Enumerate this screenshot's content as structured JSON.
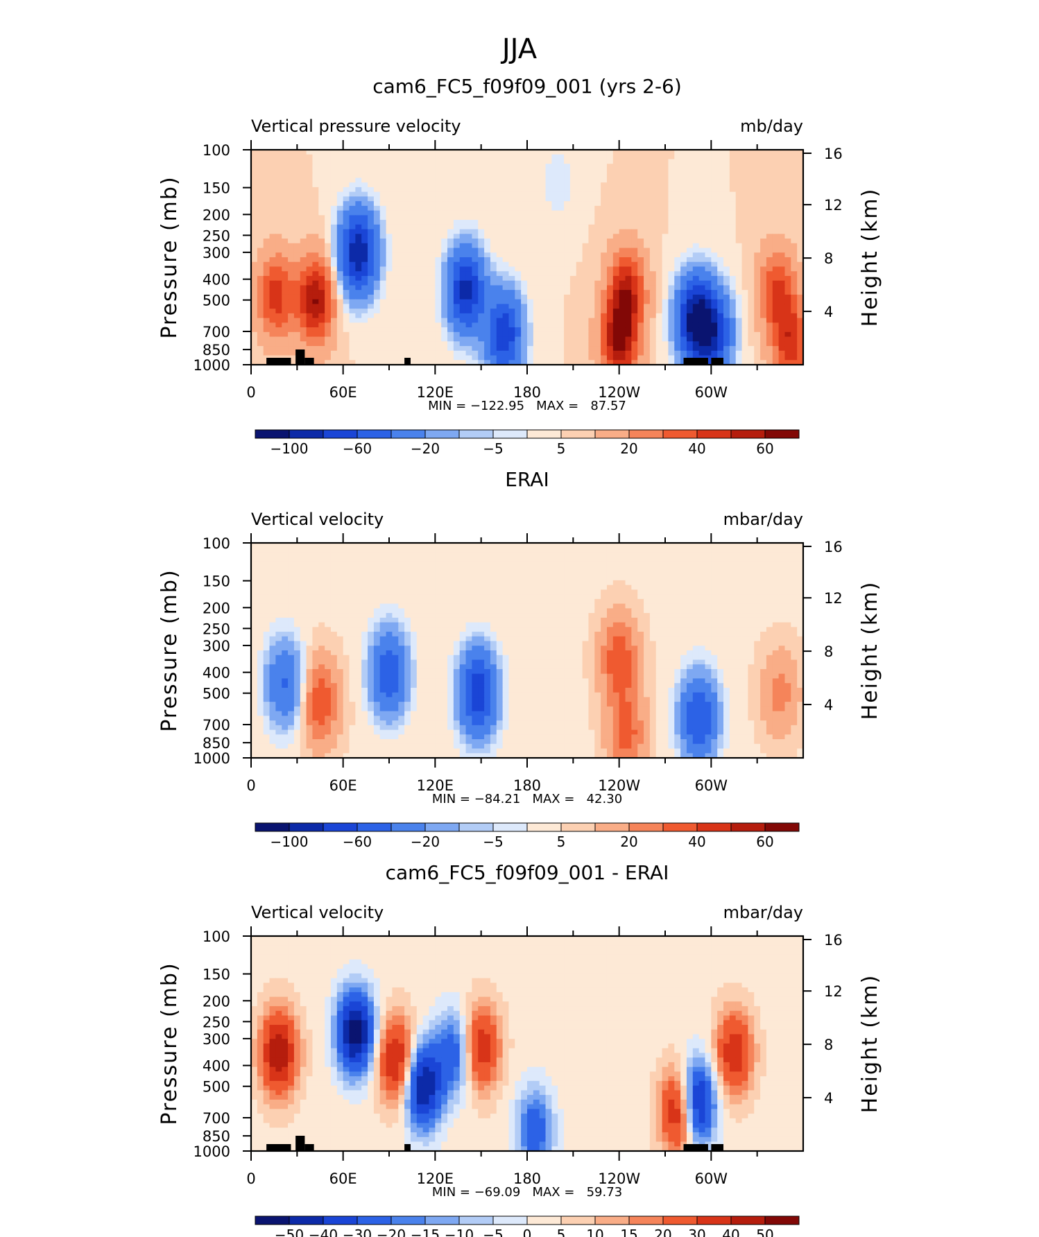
{
  "page": {
    "title": "JJA"
  },
  "chart_data": [
    {
      "type": "heatmap",
      "title": "cam6_FC5_f09f09_001 (yrs 2-6)",
      "left_label": "Vertical pressure velocity",
      "right_label": "mb/day",
      "ylabel": "Pressure (mb)",
      "ylabel_right": "Height (km)",
      "x_ticks": [
        "0",
        "60E",
        "120E",
        "180",
        "120W",
        "60W"
      ],
      "y_ticks": [
        "100",
        "150",
        "200",
        "250",
        "300",
        "400",
        "500",
        "700",
        "850",
        "1000"
      ],
      "y_ticks_right": [
        "16",
        "12",
        "8",
        "4"
      ],
      "stats": "MIN = −122.95   MAX =   87.57",
      "colorbar_labels": [
        "−100",
        "−60",
        "−20",
        "−5",
        "5",
        "20",
        "40",
        "60"
      ],
      "features": [
        {
          "lon": 70,
          "p": 300,
          "v": -100
        },
        {
          "lon": 140,
          "p": 450,
          "v": -90
        },
        {
          "lon": 165,
          "p": 720,
          "v": -80
        },
        {
          "lon": 42,
          "p": 500,
          "v": 55
        },
        {
          "lon": 16,
          "p": 480,
          "v": 40
        },
        {
          "lon": 245,
          "p": 450,
          "v": 45
        },
        {
          "lon": 240,
          "p": 780,
          "v": 55
        },
        {
          "lon": 290,
          "p": 620,
          "v": -110
        },
        {
          "lon": 302,
          "p": 720,
          "v": -70
        },
        {
          "lon": 343,
          "p": 450,
          "v": 35
        },
        {
          "lon": 352,
          "p": 800,
          "v": 40
        },
        {
          "lon": 200,
          "p": 140,
          "v": -8
        }
      ],
      "bias": 5,
      "shading": "model"
    },
    {
      "type": "heatmap",
      "title": "ERAI",
      "left_label": "Vertical velocity",
      "right_label": "mbar/day",
      "ylabel": "Pressure (mb)",
      "ylabel_right": "Height (km)",
      "x_ticks": [
        "0",
        "60E",
        "120E",
        "180",
        "120W",
        "60W"
      ],
      "y_ticks": [
        "100",
        "150",
        "200",
        "250",
        "300",
        "400",
        "500",
        "700",
        "850",
        "1000"
      ],
      "y_ticks_right": [
        "16",
        "12",
        "8",
        "4"
      ],
      "stats": "MIN = −84.21   MAX =   42.30",
      "colorbar_labels": [
        "−100",
        "−60",
        "−20",
        "−5",
        "5",
        "20",
        "40",
        "60"
      ],
      "features": [
        {
          "lon": 90,
          "p": 400,
          "v": -60
        },
        {
          "lon": 148,
          "p": 500,
          "v": -80
        },
        {
          "lon": 22,
          "p": 450,
          "v": -45
        },
        {
          "lon": 45,
          "p": 550,
          "v": 35
        },
        {
          "lon": 240,
          "p": 350,
          "v": 35
        },
        {
          "lon": 245,
          "p": 780,
          "v": 30
        },
        {
          "lon": 292,
          "p": 650,
          "v": -65
        },
        {
          "lon": 345,
          "p": 500,
          "v": 20
        }
      ],
      "bias": 4,
      "shading": "obs"
    },
    {
      "type": "heatmap",
      "title": "cam6_FC5_f09f09_001 - ERAI",
      "left_label": "Vertical velocity",
      "right_label": "mbar/day",
      "ylabel": "Pressure (mb)",
      "ylabel_right": "Height (km)",
      "x_ticks": [
        "0",
        "60E",
        "120E",
        "180",
        "120W",
        "60W"
      ],
      "y_ticks": [
        "100",
        "150",
        "200",
        "250",
        "300",
        "400",
        "500",
        "700",
        "850",
        "1000"
      ],
      "y_ticks_right": [
        "16",
        "12",
        "8",
        "4"
      ],
      "stats": "MIN = −69.09   MAX =   59.73",
      "colorbar_labels": [
        "−50",
        "−40",
        "−30",
        "−20",
        "−15",
        "−10",
        "−5",
        "0",
        "5",
        "10",
        "15",
        "20",
        "30",
        "40",
        "50"
      ],
      "features": [
        {
          "lon": 18,
          "p": 350,
          "v": 45
        },
        {
          "lon": 68,
          "p": 280,
          "v": -60
        },
        {
          "lon": 95,
          "p": 380,
          "v": 40
        },
        {
          "lon": 112,
          "p": 500,
          "v": -55
        },
        {
          "lon": 150,
          "p": 330,
          "v": 35
        },
        {
          "lon": 132,
          "p": 350,
          "v": -30
        },
        {
          "lon": 185,
          "p": 800,
          "v": -30
        },
        {
          "lon": 290,
          "p": 600,
          "v": -60
        },
        {
          "lon": 315,
          "p": 350,
          "v": 35
        },
        {
          "lon": 280,
          "p": 650,
          "v": 50
        }
      ],
      "bias": 3,
      "shading": "diff"
    }
  ],
  "colors": {
    "cold": [
      "#0a1470",
      "#0c2aa8",
      "#1a45d6",
      "#2c62e6",
      "#4a82ec",
      "#7ea8f2",
      "#b2ccf6",
      "#dde9fb"
    ],
    "warm": [
      "#fde9d6",
      "#fcd0b2",
      "#f9ad87",
      "#f5845a",
      "#ef5a30",
      "#d83418",
      "#b51d0d",
      "#820806"
    ],
    "topo": "#000000"
  }
}
